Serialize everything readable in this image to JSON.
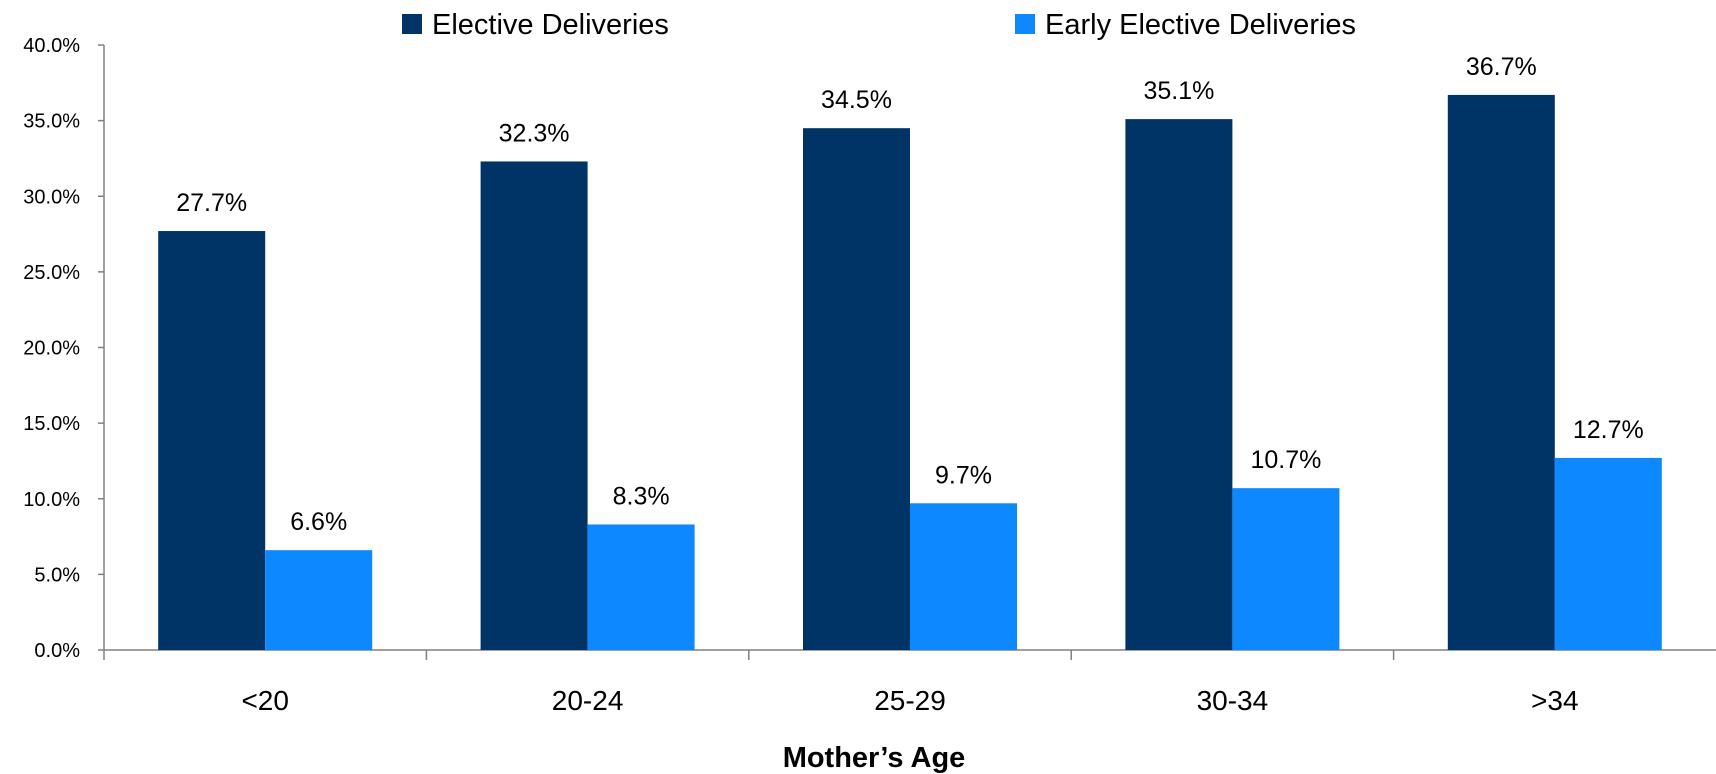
{
  "chart_data": {
    "type": "bar",
    "title": "",
    "xlabel": "Mother’s Age",
    "ylabel": "",
    "categories": [
      "<20",
      "20-24",
      "25-29",
      "30-34",
      ">34"
    ],
    "series": [
      {
        "name": "Elective Deliveries",
        "color": "#003366",
        "values": [
          27.7,
          32.3,
          34.5,
          35.1,
          36.7
        ],
        "labels": [
          "27.7%",
          "32.3%",
          "34.5%",
          "35.1%",
          "36.7%"
        ]
      },
      {
        "name": "Early Elective Deliveries",
        "color": "#0D88FF",
        "values": [
          6.6,
          8.3,
          9.7,
          10.7,
          12.7
        ],
        "labels": [
          "6.6%",
          "8.3%",
          "9.7%",
          "10.7%",
          "12.7%"
        ]
      }
    ],
    "ylim": [
      0,
      40
    ],
    "yticks": [
      0,
      5,
      10,
      15,
      20,
      25,
      30,
      35,
      40
    ],
    "ytick_labels": [
      "0.0%",
      "5.0%",
      "10.0%",
      "15.0%",
      "20.0%",
      "25.0%",
      "30.0%",
      "35.0%",
      "40.0%"
    ],
    "grid": false,
    "legend_position": "top"
  }
}
